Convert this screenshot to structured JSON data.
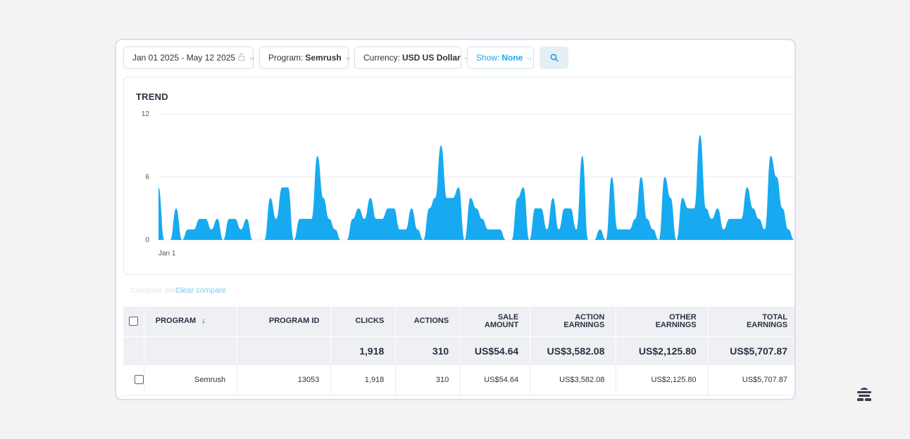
{
  "filters": {
    "date_range": "Jan 01 2025 - May 12 2025",
    "program_label": "Program:",
    "program_value": "Semrush",
    "currency_label": "Currency:",
    "currency_value": "USD US Dollar",
    "show_label": "Show:",
    "show_value": "None"
  },
  "trend": {
    "title": "TREND",
    "x_start_label": "Jan 1"
  },
  "chart_data": {
    "type": "area",
    "title": "TREND",
    "x_tick_labels": [
      "Jan 1"
    ],
    "y_ticks": [
      "12",
      "6",
      "0"
    ],
    "ylim": [
      0,
      12
    ],
    "grid": true,
    "color": "#17aaf0",
    "values": [
      5,
      0,
      0,
      3,
      0,
      1,
      1,
      2,
      2,
      1,
      2,
      0,
      2,
      2,
      1,
      2,
      0,
      0,
      0,
      4,
      2,
      5,
      5,
      0,
      2,
      2,
      2,
      8,
      4,
      2,
      1,
      0,
      0,
      2,
      3,
      2,
      4,
      2,
      2,
      3,
      3,
      1,
      1,
      3,
      1,
      0,
      3,
      4,
      9,
      4,
      4,
      5,
      0,
      4,
      3,
      2,
      1,
      1,
      1,
      0,
      0,
      4,
      5,
      0,
      3,
      3,
      1,
      4,
      1,
      3,
      3,
      1,
      8,
      0,
      0,
      1,
      0,
      6,
      1,
      1,
      1,
      2,
      6,
      2,
      1,
      0,
      6,
      4,
      0,
      4,
      3,
      3,
      10,
      3,
      2,
      3,
      1,
      2,
      2,
      2,
      5,
      3,
      2,
      1,
      8,
      6,
      3,
      1,
      0,
      4
    ]
  },
  "compare": {
    "ghost_label": "Compare dates",
    "clear_label": "Clear compare"
  },
  "table": {
    "headers": {
      "program": "PROGRAM",
      "program_id": "PROGRAM ID",
      "clicks": "CLICKS",
      "actions": "ACTIONS",
      "sale_amount_1": "SALE",
      "sale_amount_2": "AMOUNT",
      "action_earnings_1": "ACTION",
      "action_earnings_2": "EARNINGS",
      "other_earnings": "OTHER EARNINGS",
      "total_earnings": "TOTAL EARNINGS"
    },
    "totals": {
      "clicks": "1,918",
      "actions": "310",
      "sale_amount": "US$54.64",
      "action_earnings": "US$3,582.08",
      "other_earnings": "US$2,125.80",
      "total_earnings": "US$5,707.87"
    },
    "rows": [
      {
        "program": "Semrush",
        "program_id": "13053",
        "clicks": "1,918",
        "actions": "310",
        "sale_amount": "US$54.64",
        "action_earnings": "US$3,582.08",
        "other_earnings": "US$2,125.80",
        "total_earnings": "US$5,707.87"
      }
    ]
  },
  "icons": {
    "lock": "lock-icon",
    "search": "search-icon",
    "sort": "sort-down-arrow-icon",
    "logo": "beehiiv-logo-icon"
  }
}
